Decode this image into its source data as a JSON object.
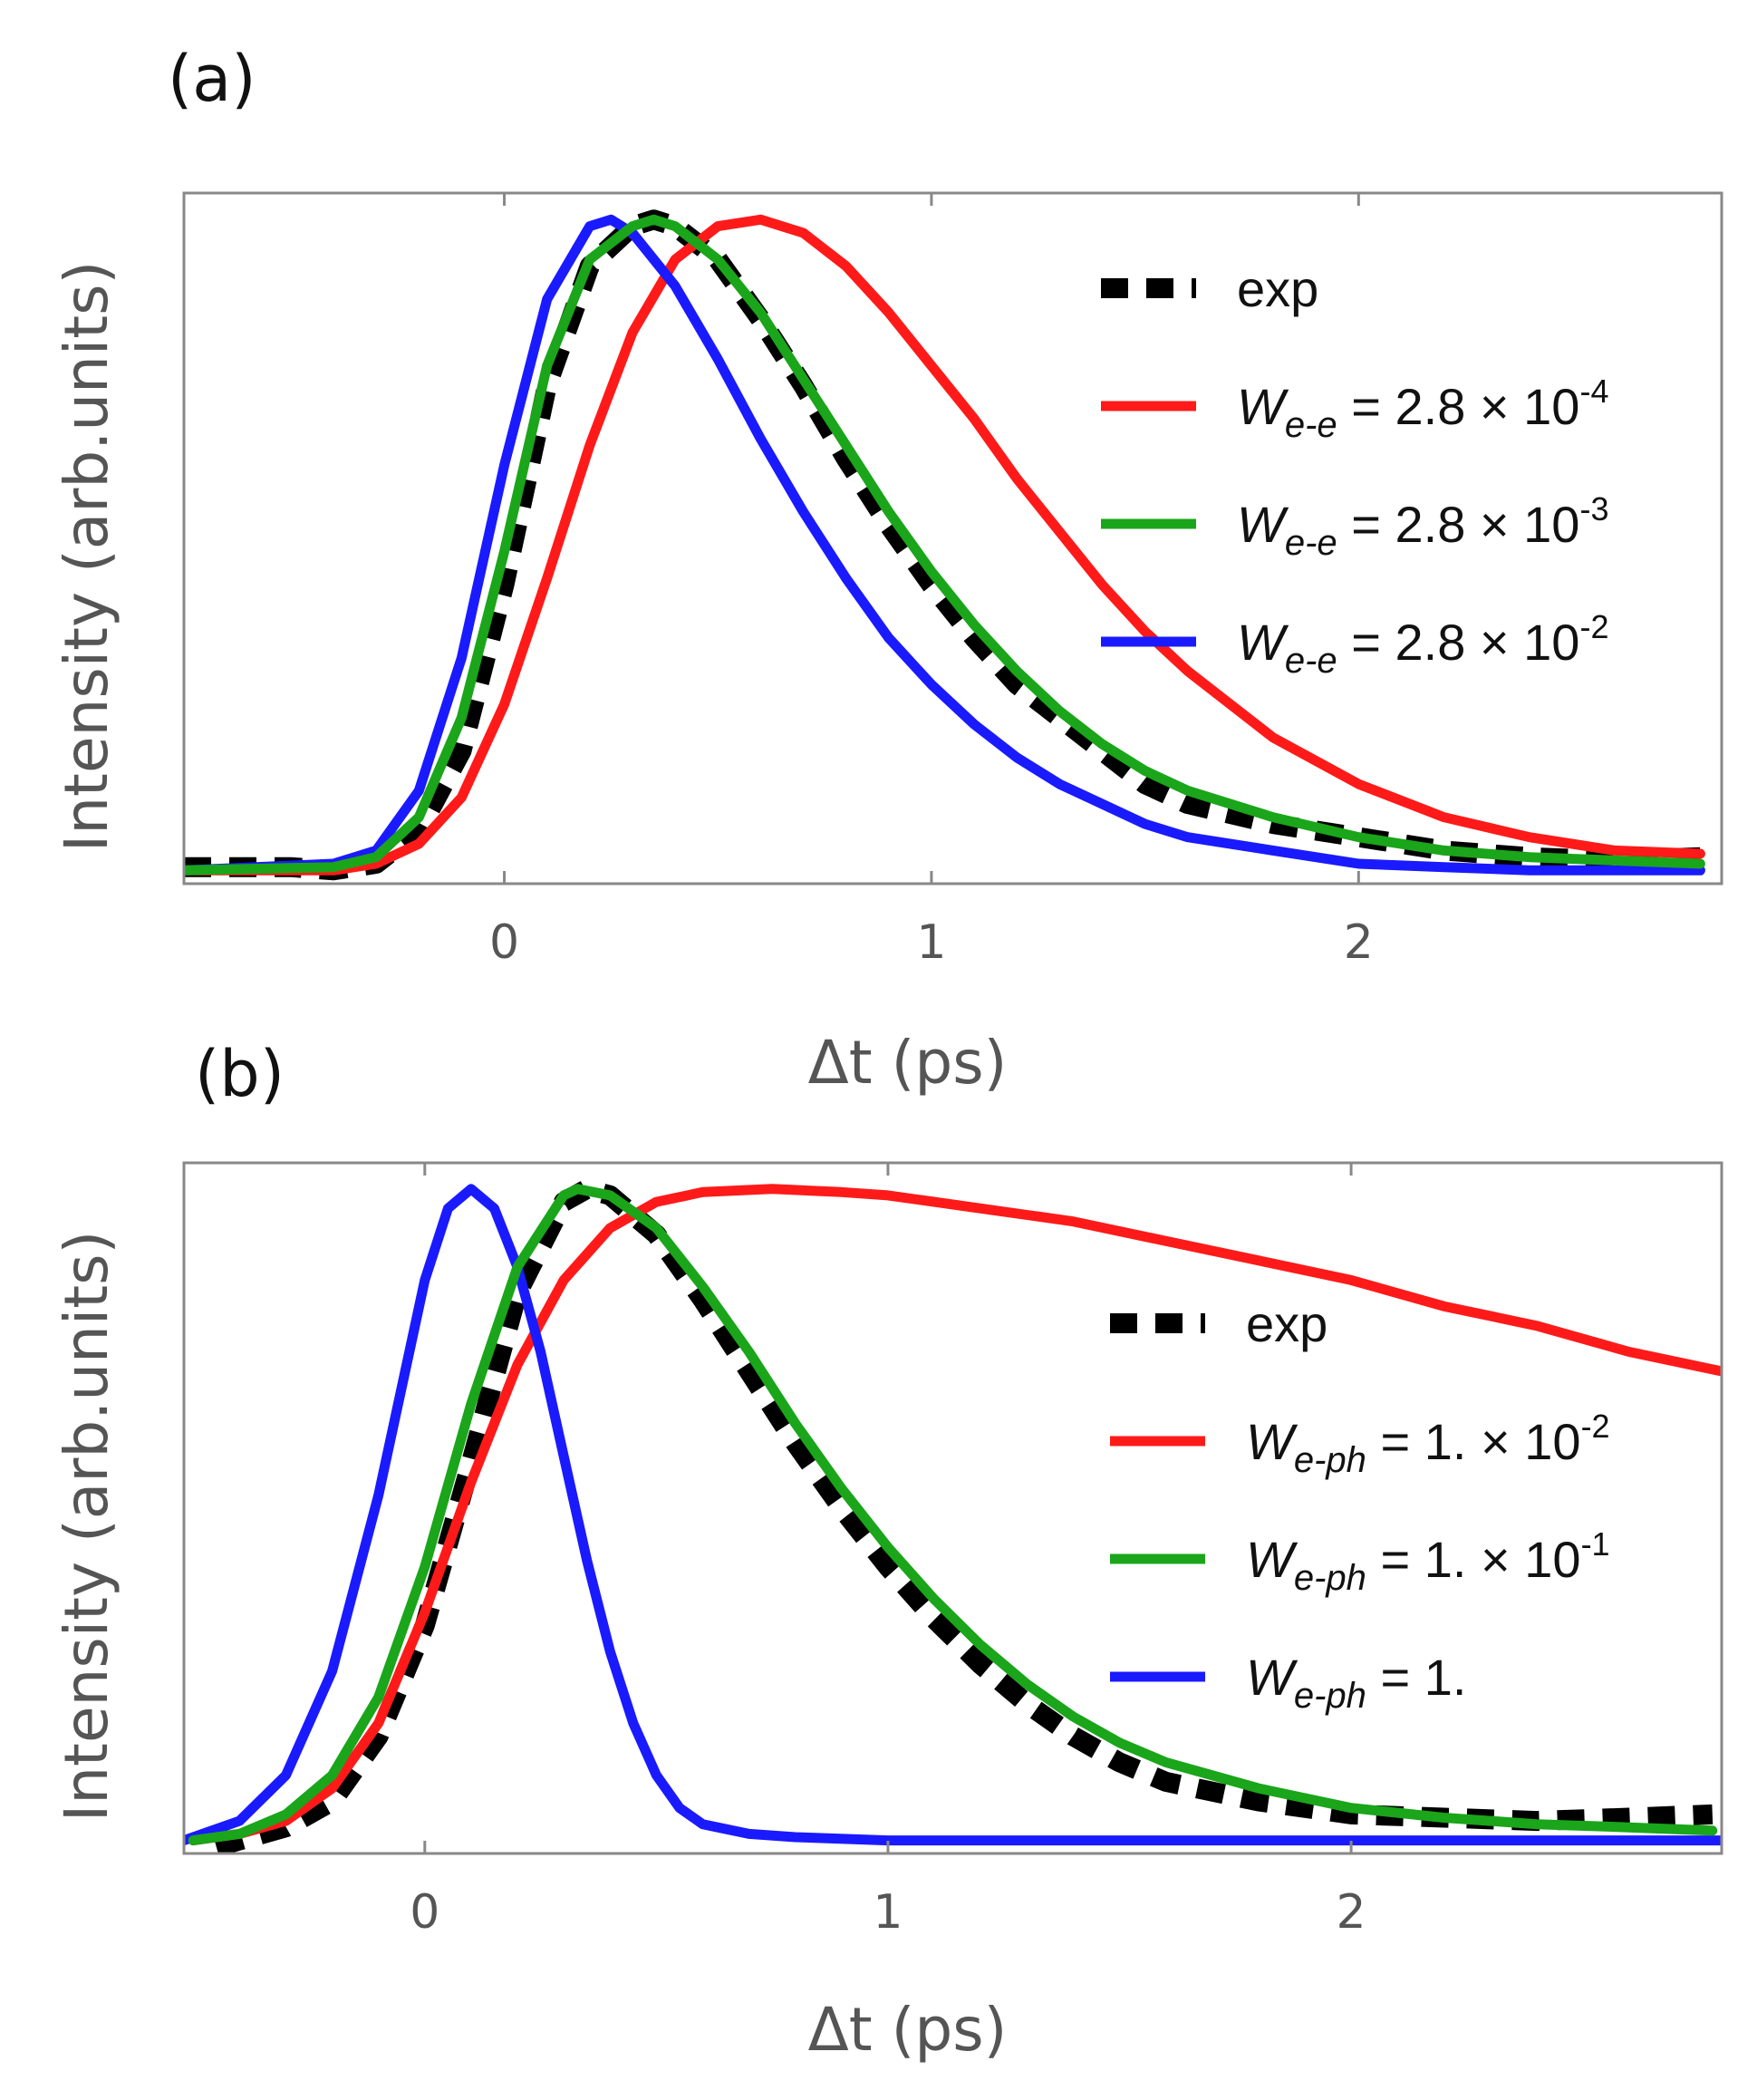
{
  "chart_data": [
    {
      "type": "line",
      "panel_label": "(a)",
      "xlabel": "Δt (ps)",
      "ylabel": "Intensity (arb.units)",
      "xlim": [
        -0.75,
        2.85
      ],
      "ylim": [
        0,
        1.04
      ],
      "xticks": [
        0,
        1,
        2
      ],
      "xtick_labels": [
        "0",
        "1",
        "2"
      ],
      "legend_position": "right",
      "series": [
        {
          "name": "exp",
          "legend": {
            "main": "exp"
          },
          "color": "#000000",
          "style": "dashed",
          "x": [
            -0.75,
            -0.5,
            -0.4,
            -0.3,
            -0.2,
            -0.1,
            0,
            0.1,
            0.2,
            0.3,
            0.35,
            0.4,
            0.5,
            0.6,
            0.7,
            0.8,
            0.9,
            1.0,
            1.1,
            1.2,
            1.3,
            1.4,
            1.5,
            1.6,
            1.8,
            2.0,
            2.2,
            2.4,
            2.6,
            2.8
          ],
          "y": [
            0.025,
            0.025,
            0.02,
            0.03,
            0.08,
            0.2,
            0.45,
            0.75,
            0.93,
            0.99,
            1.0,
            0.99,
            0.94,
            0.85,
            0.75,
            0.64,
            0.54,
            0.45,
            0.37,
            0.3,
            0.25,
            0.2,
            0.15,
            0.12,
            0.09,
            0.07,
            0.05,
            0.04,
            0.035,
            0.04
          ]
        },
        {
          "name": "We-e = 2.8 × 10-4",
          "legend": {
            "sym": "W",
            "sub": "e-e",
            "rest": " = 2.8 × 10",
            "sup": "-4"
          },
          "color": "#ff1a1a",
          "style": "solid",
          "x": [
            -0.75,
            -0.4,
            -0.3,
            -0.2,
            -0.1,
            0,
            0.1,
            0.2,
            0.3,
            0.4,
            0.5,
            0.6,
            0.7,
            0.8,
            0.9,
            1.0,
            1.1,
            1.2,
            1.3,
            1.4,
            1.5,
            1.6,
            1.8,
            2.0,
            2.2,
            2.4,
            2.6,
            2.8
          ],
          "y": [
            0.02,
            0.02,
            0.03,
            0.06,
            0.13,
            0.27,
            0.46,
            0.66,
            0.83,
            0.94,
            0.99,
            1.0,
            0.98,
            0.93,
            0.86,
            0.78,
            0.7,
            0.61,
            0.53,
            0.45,
            0.38,
            0.32,
            0.22,
            0.15,
            0.1,
            0.07,
            0.05,
            0.045
          ]
        },
        {
          "name": "We-e = 2.8 × 10-3",
          "legend": {
            "sym": "W",
            "sub": "e-e",
            "rest": " = 2.8 × 10",
            "sup": "-3"
          },
          "color": "#1aa51a",
          "style": "solid",
          "x": [
            -0.75,
            -0.4,
            -0.3,
            -0.2,
            -0.1,
            0,
            0.1,
            0.2,
            0.3,
            0.35,
            0.4,
            0.5,
            0.6,
            0.7,
            0.8,
            0.9,
            1.0,
            1.1,
            1.2,
            1.3,
            1.4,
            1.5,
            1.6,
            1.8,
            2.0,
            2.2,
            2.4,
            2.6,
            2.8
          ],
          "y": [
            0.02,
            0.025,
            0.04,
            0.1,
            0.25,
            0.5,
            0.78,
            0.94,
            0.99,
            1.0,
            0.99,
            0.94,
            0.86,
            0.76,
            0.66,
            0.56,
            0.47,
            0.39,
            0.32,
            0.26,
            0.21,
            0.17,
            0.14,
            0.1,
            0.07,
            0.05,
            0.04,
            0.035,
            0.03
          ]
        },
        {
          "name": "We-e = 2.8 × 10-2",
          "legend": {
            "sym": "W",
            "sub": "e-e",
            "rest": " = 2.8 × 10",
            "sup": "-2"
          },
          "color": "#1a1aff",
          "style": "solid",
          "x": [
            -0.75,
            -0.4,
            -0.3,
            -0.2,
            -0.1,
            0,
            0.1,
            0.2,
            0.25,
            0.3,
            0.4,
            0.5,
            0.6,
            0.7,
            0.8,
            0.9,
            1.0,
            1.1,
            1.2,
            1.3,
            1.4,
            1.5,
            1.6,
            1.8,
            2.0,
            2.2,
            2.4,
            2.6,
            2.8
          ],
          "y": [
            0.02,
            0.03,
            0.05,
            0.14,
            0.34,
            0.63,
            0.88,
            0.99,
            1.0,
            0.98,
            0.9,
            0.79,
            0.67,
            0.56,
            0.46,
            0.37,
            0.3,
            0.24,
            0.19,
            0.15,
            0.12,
            0.09,
            0.07,
            0.05,
            0.03,
            0.025,
            0.02,
            0.02,
            0.02
          ]
        }
      ]
    },
    {
      "type": "line",
      "panel_label": "(b)",
      "xlabel": "Δt (ps)",
      "ylabel": "Intensity (arb.units)",
      "xlim": [
        -0.52,
        2.8
      ],
      "ylim": [
        -0.02,
        1.04
      ],
      "xticks": [
        0,
        1,
        2
      ],
      "xtick_labels": [
        "0",
        "1",
        "2"
      ],
      "legend_position": "right",
      "series": [
        {
          "name": "exp",
          "legend": {
            "main": "exp"
          },
          "color": "#000000",
          "style": "dashed",
          "x": [
            -0.45,
            -0.4,
            -0.3,
            -0.2,
            -0.1,
            0,
            0.1,
            0.2,
            0.3,
            0.35,
            0.4,
            0.5,
            0.6,
            0.7,
            0.8,
            0.9,
            1.0,
            1.1,
            1.2,
            1.3,
            1.4,
            1.5,
            1.6,
            1.8,
            2.0,
            2.2,
            2.4,
            2.6,
            2.78
          ],
          "y": [
            -0.01,
            0.0,
            0.02,
            0.06,
            0.16,
            0.33,
            0.58,
            0.84,
            0.98,
            1.0,
            0.99,
            0.93,
            0.83,
            0.72,
            0.61,
            0.51,
            0.42,
            0.34,
            0.27,
            0.21,
            0.16,
            0.12,
            0.09,
            0.06,
            0.04,
            0.035,
            0.03,
            0.035,
            0.04
          ]
        },
        {
          "name": "We-ph = 1. × 10-2",
          "legend": {
            "sym": "W",
            "sub": "e-ph",
            "rest": " = 1. × 10",
            "sup": "-2"
          },
          "color": "#ff1a1a",
          "style": "solid",
          "x": [
            -0.5,
            -0.4,
            -0.3,
            -0.2,
            -0.1,
            0,
            0.1,
            0.2,
            0.3,
            0.4,
            0.5,
            0.6,
            0.75,
            0.9,
            1.0,
            1.2,
            1.4,
            1.6,
            1.8,
            2.0,
            2.2,
            2.4,
            2.6,
            2.8
          ],
          "y": [
            0.0,
            0.01,
            0.03,
            0.08,
            0.18,
            0.35,
            0.55,
            0.73,
            0.86,
            0.94,
            0.98,
            0.995,
            1.0,
            0.995,
            0.99,
            0.97,
            0.95,
            0.92,
            0.89,
            0.86,
            0.82,
            0.79,
            0.75,
            0.72
          ]
        },
        {
          "name": "We-ph = 1. × 10-1",
          "legend": {
            "sym": "W",
            "sub": "e-ph",
            "rest": " = 1. × 10",
            "sup": "-1"
          },
          "color": "#1aa51a",
          "style": "solid",
          "x": [
            -0.5,
            -0.4,
            -0.3,
            -0.2,
            -0.1,
            0,
            0.1,
            0.2,
            0.3,
            0.33,
            0.4,
            0.5,
            0.6,
            0.7,
            0.8,
            0.9,
            1.0,
            1.1,
            1.2,
            1.3,
            1.4,
            1.5,
            1.6,
            1.8,
            2.0,
            2.2,
            2.4,
            2.6,
            2.78
          ],
          "y": [
            0.0,
            0.01,
            0.04,
            0.1,
            0.22,
            0.42,
            0.67,
            0.88,
            0.99,
            1.0,
            0.99,
            0.94,
            0.85,
            0.75,
            0.64,
            0.54,
            0.45,
            0.37,
            0.3,
            0.24,
            0.19,
            0.15,
            0.12,
            0.08,
            0.05,
            0.035,
            0.025,
            0.02,
            0.015
          ]
        },
        {
          "name": "We-ph = 1.",
          "legend": {
            "sym": "W",
            "sub": "e-ph",
            "rest": " = 1.",
            "sup": ""
          },
          "color": "#1a1aff",
          "style": "solid",
          "x": [
            -0.52,
            -0.4,
            -0.3,
            -0.2,
            -0.1,
            0,
            0.05,
            0.1,
            0.15,
            0.2,
            0.25,
            0.3,
            0.35,
            0.4,
            0.45,
            0.5,
            0.55,
            0.6,
            0.7,
            0.8,
            1.0,
            2.8
          ],
          "y": [
            0.0,
            0.03,
            0.1,
            0.26,
            0.53,
            0.86,
            0.97,
            1.0,
            0.97,
            0.88,
            0.75,
            0.59,
            0.43,
            0.29,
            0.18,
            0.1,
            0.05,
            0.025,
            0.01,
            0.005,
            0.0,
            0.0
          ]
        }
      ]
    }
  ]
}
